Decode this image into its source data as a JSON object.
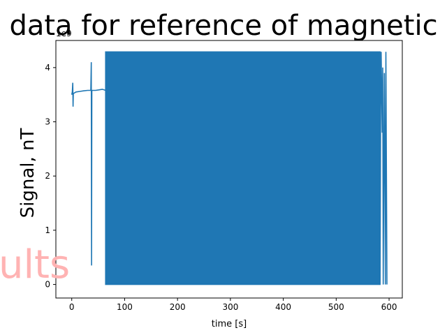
{
  "chart_data": {
    "type": "line",
    "title": "data for reference of magnetic",
    "xlabel": "time [s]",
    "ylabel": "Signal, nT",
    "y_offset_label": "1e9",
    "overlay_text": "ults",
    "xlim": [
      -30,
      625
    ],
    "ylim": [
      -0.25,
      4.5
    ],
    "xticks": [
      0,
      100,
      200,
      300,
      400,
      500,
      600
    ],
    "yticks": [
      0,
      1,
      2,
      3,
      4
    ],
    "grid": false,
    "series": [
      {
        "color": "#1f77b4",
        "points": [
          [
            0,
            3.5
          ],
          [
            1,
            3.55
          ],
          [
            2,
            3.72
          ],
          [
            2.5,
            3.28
          ],
          [
            3,
            3.52
          ],
          [
            8,
            3.55
          ],
          [
            15,
            3.56
          ],
          [
            22,
            3.57
          ],
          [
            30,
            3.58
          ],
          [
            36,
            3.58
          ],
          [
            37,
            4.1
          ],
          [
            37.5,
            0.35
          ],
          [
            38,
            3.58
          ],
          [
            45,
            3.58
          ],
          [
            52,
            3.59
          ],
          [
            58,
            3.6
          ],
          [
            64,
            3.58
          ]
        ],
        "dense_band": {
          "x_start": 64,
          "x_end": 583,
          "y_min": 0.0,
          "y_max": 4.29
        },
        "tail_points": [
          [
            583,
            0.0
          ],
          [
            584,
            3.28
          ],
          [
            585,
            4.29
          ],
          [
            587,
            2.8
          ],
          [
            588,
            4.0
          ],
          [
            589,
            0.0
          ],
          [
            591,
            3.9
          ],
          [
            593,
            0.0
          ],
          [
            594,
            4.29
          ],
          [
            596,
            0.0
          ]
        ]
      }
    ]
  }
}
